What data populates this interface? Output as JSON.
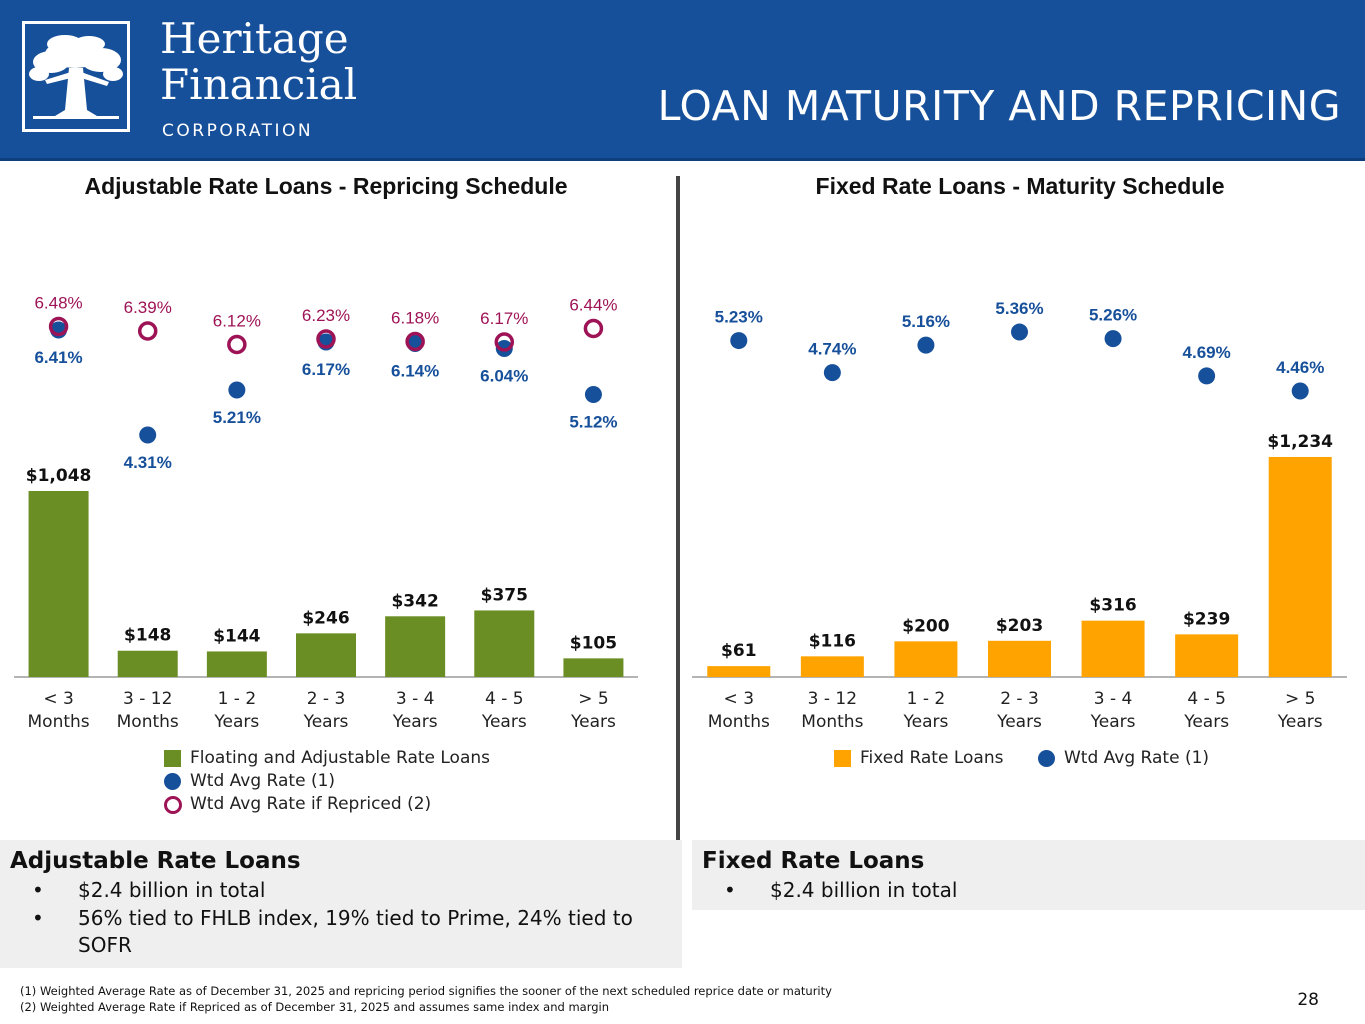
{
  "header": {
    "brand_line1": "Heritage",
    "brand_line2": "Financial",
    "brand_line3": "CORPORATION",
    "title": "LOAN MATURITY AND REPRICING",
    "bg_color": "#17509A",
    "logo_icon": "oak-tree-icon"
  },
  "chart_data": [
    {
      "type": "bar",
      "title": "Adjustable Rate Loans - Repricing Schedule",
      "categories": [
        [
          "< 3",
          "Months"
        ],
        [
          "3 - 12",
          "Months"
        ],
        [
          "1 - 2",
          "Years"
        ],
        [
          "2 - 3",
          "Years"
        ],
        [
          "3 - 4",
          "Years"
        ],
        [
          "4 - 5",
          "Years"
        ],
        [
          "> 5",
          "Years"
        ]
      ],
      "series": [
        {
          "name": "Floating and Adjustable Rate Loans",
          "kind": "bar",
          "color": "#6A8E23",
          "values": [
            1048,
            148,
            144,
            246,
            342,
            375,
            105
          ],
          "labels": [
            "$1,048",
            "$148",
            "$144",
            "$246",
            "$342",
            "$375",
            "$105"
          ]
        },
        {
          "name": "Wtd Avg Rate (1)",
          "kind": "dot",
          "color": "#17509A",
          "values": [
            6.41,
            4.31,
            5.21,
            6.17,
            6.14,
            6.04,
            5.12
          ],
          "labels": [
            "6.41%",
            "4.31%",
            "5.21%",
            "6.17%",
            "6.14%",
            "6.04%",
            "5.12%"
          ]
        },
        {
          "name": "Wtd Avg Rate if Repriced (2)",
          "kind": "ring",
          "color": "#9E1356",
          "values": [
            6.48,
            6.39,
            6.12,
            6.23,
            6.18,
            6.17,
            6.44
          ],
          "labels": [
            "6.48%",
            "6.39%",
            "6.12%",
            "6.23%",
            "6.18%",
            "6.17%",
            "6.44%"
          ]
        }
      ]
    },
    {
      "type": "bar",
      "title": "Fixed Rate Loans - Maturity Schedule",
      "categories": [
        [
          "< 3",
          "Months"
        ],
        [
          "3 - 12",
          "Months"
        ],
        [
          "1 - 2",
          "Years"
        ],
        [
          "2 - 3",
          "Years"
        ],
        [
          "3 - 4",
          "Years"
        ],
        [
          "4 - 5",
          "Years"
        ],
        [
          "> 5",
          "Years"
        ]
      ],
      "series": [
        {
          "name": "Fixed Rate Loans",
          "kind": "bar",
          "color": "#FFA300",
          "values": [
            61,
            116,
            200,
            203,
            316,
            239,
            1234
          ],
          "labels": [
            "$61",
            "$116",
            "$200",
            "$203",
            "$316",
            "$239",
            "$1,234"
          ]
        },
        {
          "name": "Wtd Avg Rate (1)",
          "kind": "dot",
          "color": "#17509A",
          "values": [
            5.23,
            4.74,
            5.16,
            5.36,
            5.26,
            4.69,
            4.46
          ],
          "labels": [
            "5.23%",
            "4.74%",
            "5.16%",
            "5.36%",
            "5.26%",
            "4.69%",
            "4.46%"
          ]
        }
      ]
    }
  ],
  "adjustable": {
    "heading": "Adjustable Rate Loans",
    "bullets": [
      "$2.4 billion in total",
      "56% tied to FHLB index, 19% tied to Prime, 24% tied to",
      "SOFR"
    ]
  },
  "fixed": {
    "heading": "Fixed Rate Loans",
    "bullets": [
      "$2.4 billion in total"
    ]
  },
  "footnotes": [
    "(1) Weighted Average Rate as of December 31, 2025 and repricing period signifies the sooner of the next scheduled reprice date or maturity",
    "(2) Weighted Average Rate if Repriced as of December 31, 2025 and assumes same index and margin"
  ],
  "page_number": "28",
  "bullet_char": "•"
}
